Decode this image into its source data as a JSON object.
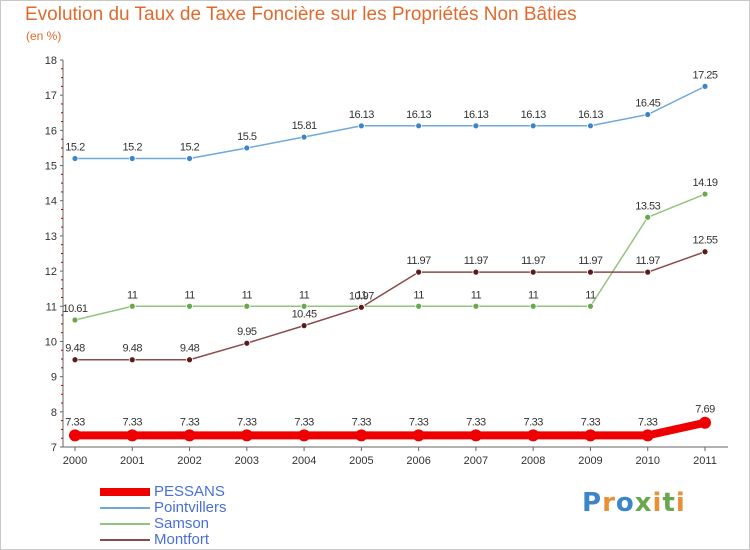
{
  "chart_data": {
    "type": "line",
    "title": "Evolution du Taux de Taxe Foncière sur les Propriétés Non Bâties",
    "subtitle": "(en %)",
    "xlabel": "",
    "ylabel": "",
    "x": [
      "2000",
      "2001",
      "2002",
      "2003",
      "2004",
      "2005",
      "2006",
      "2007",
      "2008",
      "2009",
      "2010",
      "2011"
    ],
    "ylim": [
      7,
      18
    ],
    "yticks": [
      "7",
      "8",
      "9",
      "10",
      "11",
      "12",
      "13",
      "14",
      "15",
      "16",
      "17",
      "18"
    ],
    "grid": false,
    "legend_position": "bottom-left",
    "series": [
      {
        "name": "Pointvillers",
        "color": "#6fa8dc",
        "marker": "#3d85c6",
        "width": 1.5,
        "values": [
          15.2,
          15.2,
          15.2,
          15.5,
          15.81,
          16.13,
          16.13,
          16.13,
          16.13,
          16.13,
          16.45,
          17.25
        ],
        "labels": [
          "15.2",
          "15.2",
          "15.2",
          "15.5",
          "15.81",
          "16.13",
          "16.13",
          "16.13",
          "16.13",
          "16.13",
          "16.45",
          "17.25"
        ]
      },
      {
        "name": "Samson",
        "color": "#93c47d",
        "marker": "#6aa84f",
        "width": 1.5,
        "values": [
          10.61,
          11,
          11,
          11,
          11,
          11,
          11,
          11,
          11,
          11,
          13.53,
          14.19
        ],
        "labels": [
          "10.61",
          "11",
          "11",
          "11",
          "11",
          "11",
          "11",
          "11",
          "11",
          "11",
          "13.53",
          "14.19"
        ]
      },
      {
        "name": "Montfort",
        "color": "#8b4a4a",
        "marker": "#5b1a1a",
        "width": 1.5,
        "values": [
          9.48,
          9.48,
          9.48,
          9.95,
          10.45,
          10.97,
          11.97,
          11.97,
          11.97,
          11.97,
          11.97,
          12.55
        ],
        "labels": [
          "9.48",
          "9.48",
          "9.48",
          "9.95",
          "10.45",
          "10.97",
          "11.97",
          "11.97",
          "11.97",
          "11.97",
          "11.97",
          "12.55"
        ]
      },
      {
        "name": "PESSANS",
        "color": "#ee0000",
        "marker": "#ee0000",
        "width": 8,
        "values": [
          7.33,
          7.33,
          7.33,
          7.33,
          7.33,
          7.33,
          7.33,
          7.33,
          7.33,
          7.33,
          7.33,
          7.69
        ],
        "labels": [
          "7.33",
          "7.33",
          "7.33",
          "7.33",
          "7.33",
          "7.33",
          "7.33",
          "7.33",
          "7.33",
          "7.33",
          "7.33",
          "7.69"
        ]
      }
    ]
  },
  "legend": {
    "items": [
      {
        "label": "PESSANS",
        "color": "#ee0000"
      },
      {
        "label": "Pointvillers",
        "color": "#6fa8dc"
      },
      {
        "label": "Samson",
        "color": "#93c47d"
      },
      {
        "label": "Montfort",
        "color": "#8b4a4a"
      }
    ]
  },
  "logo": {
    "letters": [
      "P",
      "r",
      "o",
      "x",
      "i",
      "t",
      "i"
    ],
    "colors": [
      "#3d85c6",
      "#e69138",
      "#3d85c6",
      "#6aa84f",
      "#e69138",
      "#6aa84f",
      "#e69138"
    ]
  }
}
